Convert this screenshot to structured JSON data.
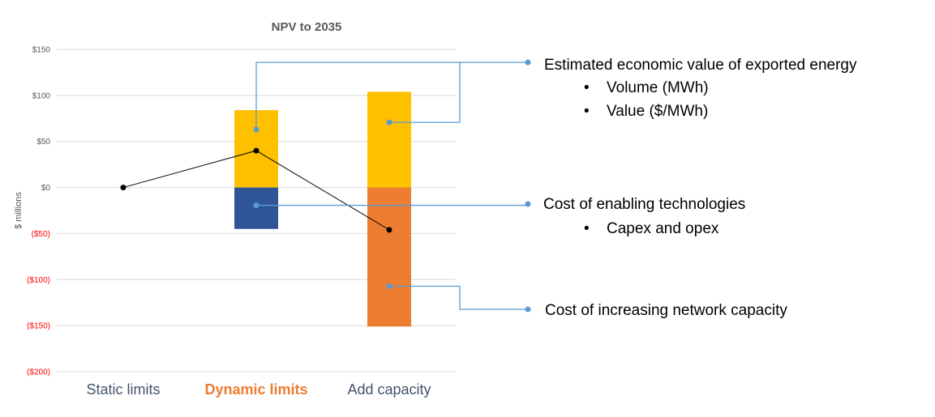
{
  "chart_data": {
    "type": "bar",
    "title": "NPV to 2035",
    "ylabel": "$ millions",
    "ylim": [
      -200,
      150
    ],
    "yticks": [
      {
        "value": 150,
        "label": "$150"
      },
      {
        "value": 100,
        "label": "$100"
      },
      {
        "value": 50,
        "label": "$50"
      },
      {
        "value": 0,
        "label": "$0"
      },
      {
        "value": -50,
        "label": "($50)"
      },
      {
        "value": -100,
        "label": "($100)"
      },
      {
        "value": -150,
        "label": "($150)"
      },
      {
        "value": -200,
        "label": "($200)"
      }
    ],
    "grid": true,
    "categories": [
      "Static limits",
      "Dynamic limits",
      "Add capacity"
    ],
    "category_colors": [
      "#44546a",
      "#ed7d31",
      "#44546a"
    ],
    "category_bold": [
      false,
      true,
      false
    ],
    "series": [
      {
        "name": "Estimated economic value of exported energy",
        "color": "#ffc000",
        "values": [
          0,
          84,
          104
        ]
      },
      {
        "name": "Cost of enabling technologies",
        "color": "#2f5597",
        "values": [
          0,
          -45,
          0
        ]
      },
      {
        "name": "Cost of increasing network capacity",
        "color": "#ed7d31",
        "values": [
          0,
          0,
          -151
        ]
      }
    ],
    "net_line": {
      "values": [
        0,
        40,
        -46
      ],
      "color": "#000000"
    },
    "negative_tick_color": "#ff0000",
    "positive_tick_color": "#595959"
  },
  "annotations": [
    {
      "title": "Estimated economic value of exported energy",
      "bullets": [
        "Volume (MWh)",
        "Value ($/MWh)"
      ]
    },
    {
      "title": "Cost of enabling technologies",
      "bullets": [
        "Capex and opex"
      ]
    },
    {
      "title": "Cost of increasing network capacity",
      "bullets": []
    }
  ],
  "leader_color": "#5b9bd5",
  "bullet_glyph": "•"
}
